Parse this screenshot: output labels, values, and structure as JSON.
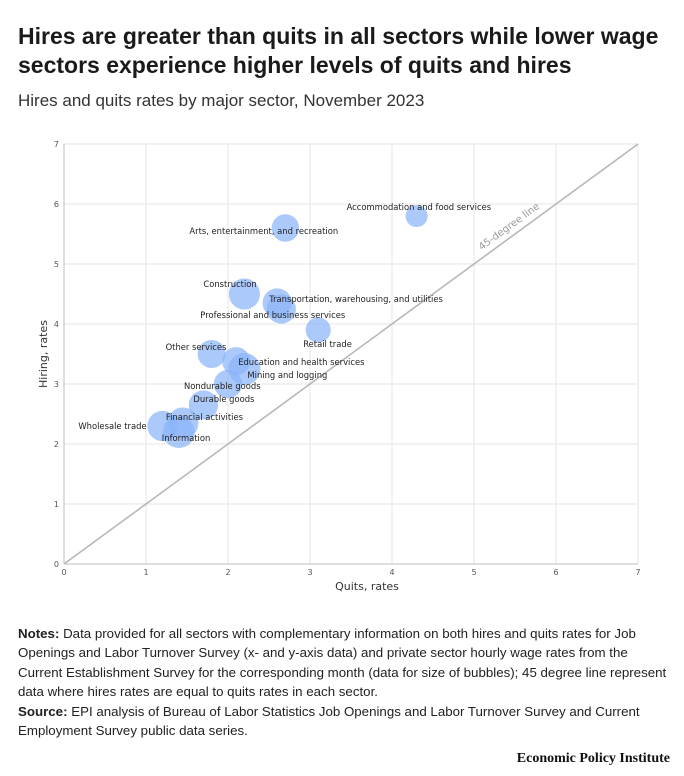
{
  "header": {
    "title": "Hires are greater than quits in all sectors while lower wage sectors experience higher levels of quits and hires",
    "subtitle": "Hires and quits rates by major sector, November 2023"
  },
  "chart_data": {
    "type": "scatter",
    "xlabel": "Quits, rates",
    "ylabel": "Hiring, rates",
    "xlim": [
      0,
      7
    ],
    "ylim": [
      0,
      7
    ],
    "x_ticks": [
      0,
      1,
      2,
      3,
      4,
      5,
      6,
      7
    ],
    "y_ticks": [
      0,
      1,
      2,
      3,
      4,
      5,
      6,
      7
    ],
    "grid": true,
    "reference_line": {
      "label": "45-degree line",
      "slope": 1
    },
    "bubble_color": "#8ab4f8",
    "points": [
      {
        "label": "Accommodation and food services",
        "x": 4.3,
        "y": 5.8,
        "size": 0.45
      },
      {
        "label": "Arts, entertainment, and recreation",
        "x": 2.7,
        "y": 5.6,
        "size": 0.75
      },
      {
        "label": "Construction",
        "x": 2.2,
        "y": 4.5,
        "size": 0.95
      },
      {
        "label": "Transportation, warehousing, and utilities",
        "x": 2.6,
        "y": 4.35,
        "size": 0.85
      },
      {
        "label": "Professional and business services",
        "x": 2.65,
        "y": 4.25,
        "size": 0.85
      },
      {
        "label": "Retail trade",
        "x": 3.1,
        "y": 3.9,
        "size": 0.62
      },
      {
        "label": "Other services",
        "x": 1.8,
        "y": 3.5,
        "size": 0.78
      },
      {
        "label": "Education and health services",
        "x": 2.1,
        "y": 3.38,
        "size": 0.78
      },
      {
        "label": "Mining and logging",
        "x": 2.2,
        "y": 3.25,
        "size": 1.0
      },
      {
        "label": "Nondurable goods",
        "x": 2.0,
        "y": 3.0,
        "size": 0.8
      },
      {
        "label": "Durable goods",
        "x": 1.7,
        "y": 2.65,
        "size": 0.85
      },
      {
        "label": "Financial activities",
        "x": 1.45,
        "y": 2.35,
        "size": 0.95
      },
      {
        "label": "Wholesale trade",
        "x": 1.2,
        "y": 2.3,
        "size": 0.9
      },
      {
        "label": "Information",
        "x": 1.4,
        "y": 2.2,
        "size": 1.0
      }
    ]
  },
  "footer": {
    "notes_label": "Notes:",
    "notes_text": " Data provided for all sectors with complementary information on both hires and quits rates for Job Openings and Labor Turnover Survey (x- and y-axis data) and private sector hourly wage rates from the Current Establishment Survey for the corresponding month (data for size of bubbles); 45 degree line represent data where hires rates are equal to quits rates in each sector.",
    "source_label": "Source:",
    "source_text": " EPI analysis of Bureau of Labor Statistics Job Openings and Labor Turnover Survey and Current Employment Survey public data series.",
    "brand": "Economic Policy Institute"
  }
}
